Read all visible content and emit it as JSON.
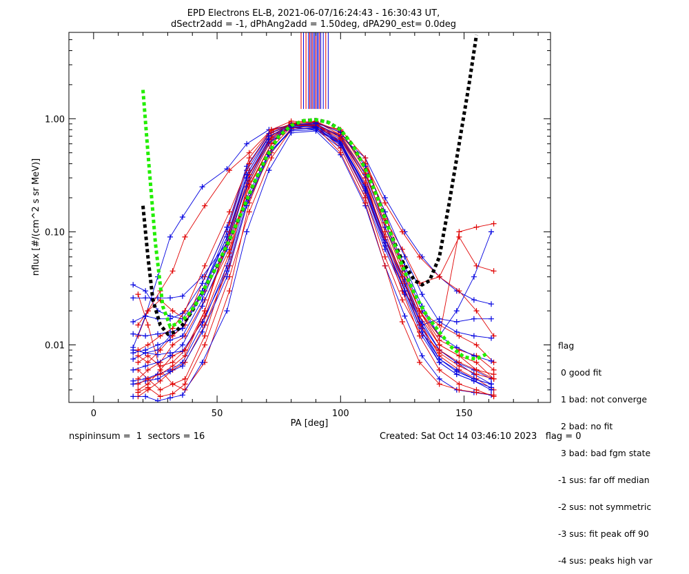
{
  "chart_data": {
    "type": "scatter",
    "title": "EPD Electrons EL-B, 2021-06-07/16:24:43 - 16:30:43 UT,",
    "subtitle": "dSectr2add = -1, dPhAng2add = 1.50deg, dPA290_est=   0.0deg",
    "xlabel": "PA [deg]",
    "ylabel": "nflux [#/(cm^2 s sr MeV)]",
    "xlim": [
      -10,
      185
    ],
    "ylim": [
      0.0031,
      5.8
    ],
    "yscale": "log",
    "x_ticks": [
      0,
      50,
      100,
      150
    ],
    "x_tick_labels": [
      "0",
      "50",
      "100",
      "150"
    ],
    "y_ticks": [
      0.01,
      0.1,
      1.0
    ],
    "y_tick_labels": [
      "0.01",
      "0.10",
      "1.00"
    ],
    "grid": false,
    "colors": {
      "red": "#e00000",
      "blue": "#0000e0",
      "green_fit": "#22ee00",
      "black_fit": "#000000"
    },
    "sweeps": {
      "x_red": [
        18,
        22,
        27,
        32,
        37,
        45,
        55,
        63,
        72,
        80,
        90,
        100,
        110,
        118,
        125,
        132,
        140,
        148,
        155,
        162
      ],
      "x_blue": [
        16,
        21,
        26,
        31,
        36,
        44,
        54,
        62,
        71,
        80,
        90,
        100,
        110,
        118,
        126,
        133,
        140,
        147,
        154,
        161
      ],
      "red_series": [
        [
          0.028,
          0.015,
          0.006,
          0.0045,
          0.004,
          0.007,
          0.03,
          0.18,
          0.55,
          0.85,
          0.9,
          0.7,
          0.3,
          0.08,
          0.03,
          0.02,
          0.01,
          0.008,
          0.007,
          0.005
        ],
        [
          0.012,
          0.02,
          0.025,
          0.02,
          0.017,
          0.03,
          0.08,
          0.25,
          0.6,
          0.9,
          0.95,
          0.75,
          0.4,
          0.15,
          0.05,
          0.02,
          0.015,
          0.012,
          0.01,
          0.007
        ],
        [
          0.006,
          0.005,
          0.004,
          0.0045,
          0.005,
          0.012,
          0.06,
          0.3,
          0.7,
          0.92,
          0.92,
          0.62,
          0.25,
          0.09,
          0.04,
          0.016,
          0.008,
          0.006,
          0.005,
          0.004
        ],
        [
          0.004,
          0.0045,
          0.006,
          0.008,
          0.009,
          0.02,
          0.1,
          0.35,
          0.75,
          0.88,
          0.9,
          0.8,
          0.45,
          0.13,
          0.07,
          0.035,
          0.04,
          0.09,
          0.05,
          0.045
        ],
        [
          0.0035,
          0.004,
          0.0048,
          0.006,
          0.007,
          0.015,
          0.05,
          0.2,
          0.5,
          0.82,
          0.88,
          0.55,
          0.2,
          0.06,
          0.025,
          0.013,
          0.009,
          0.007,
          0.006,
          0.005
        ],
        [
          0.008,
          0.007,
          0.009,
          0.012,
          0.015,
          0.04,
          0.12,
          0.45,
          0.8,
          0.95,
          0.93,
          0.78,
          0.35,
          0.11,
          0.045,
          0.02,
          0.011,
          0.009,
          0.008,
          0.006
        ],
        [
          0.005,
          0.006,
          0.007,
          0.01,
          0.012,
          0.025,
          0.07,
          0.28,
          0.65,
          0.9,
          0.9,
          0.6,
          0.22,
          0.08,
          0.03,
          0.012,
          0.006,
          0.0045,
          0.004,
          0.0035
        ],
        [
          0.015,
          0.02,
          0.03,
          0.045,
          0.09,
          0.17,
          0.35,
          0.5,
          0.8,
          0.87,
          0.87,
          0.72,
          0.4,
          0.18,
          0.1,
          0.06,
          0.04,
          0.03,
          0.02,
          0.012
        ],
        [
          0.0038,
          0.0042,
          0.0035,
          0.0037,
          0.0045,
          0.01,
          0.04,
          0.15,
          0.45,
          0.8,
          0.85,
          0.5,
          0.18,
          0.05,
          0.016,
          0.007,
          0.0045,
          0.004,
          0.0038,
          0.0036
        ],
        [
          0.009,
          0.01,
          0.012,
          0.014,
          0.02,
          0.05,
          0.15,
          0.4,
          0.78,
          0.9,
          0.9,
          0.68,
          0.3,
          0.1,
          0.04,
          0.018,
          0.01,
          0.008,
          0.006,
          0.0055
        ],
        [
          0.007,
          0.008,
          0.0065,
          0.007,
          0.009,
          0.018,
          0.065,
          0.26,
          0.6,
          0.88,
          0.88,
          0.66,
          0.27,
          0.09,
          0.035,
          0.015,
          0.0085,
          0.0065,
          0.0055,
          0.005
        ],
        [
          0.0045,
          0.005,
          0.0055,
          0.0065,
          0.008,
          0.02,
          0.09,
          0.32,
          0.68,
          0.91,
          0.94,
          0.72,
          0.33,
          0.12,
          0.05,
          0.02,
          0.012,
          0.1,
          0.11,
          0.118
        ]
      ],
      "blue_series": [
        [
          0.034,
          0.03,
          0.02,
          0.018,
          0.017,
          0.03,
          0.1,
          0.35,
          0.7,
          0.85,
          0.8,
          0.6,
          0.25,
          0.09,
          0.035,
          0.015,
          0.009,
          0.007,
          0.0055,
          0.0045
        ],
        [
          0.0095,
          0.018,
          0.04,
          0.09,
          0.135,
          0.25,
          0.36,
          0.6,
          0.8,
          0.88,
          0.85,
          0.7,
          0.45,
          0.2,
          0.1,
          0.06,
          0.04,
          0.03,
          0.025,
          0.023
        ],
        [
          0.0075,
          0.0085,
          0.009,
          0.012,
          0.014,
          0.03,
          0.09,
          0.3,
          0.65,
          0.83,
          0.82,
          0.62,
          0.26,
          0.09,
          0.038,
          0.016,
          0.009,
          0.007,
          0.006,
          0.005
        ],
        [
          0.0048,
          0.005,
          0.0055,
          0.006,
          0.007,
          0.015,
          0.05,
          0.2,
          0.5,
          0.78,
          0.8,
          0.55,
          0.2,
          0.07,
          0.028,
          0.012,
          0.007,
          0.0055,
          0.0048,
          0.0042
        ],
        [
          0.026,
          0.026,
          0.026,
          0.026,
          0.027,
          0.04,
          0.08,
          0.25,
          0.6,
          0.86,
          0.86,
          0.64,
          0.24,
          0.08,
          0.03,
          0.015,
          0.017,
          0.016,
          0.017,
          0.017
        ],
        [
          0.009,
          0.0085,
          0.0082,
          0.0085,
          0.0088,
          0.016,
          0.045,
          0.18,
          0.5,
          0.8,
          0.83,
          0.58,
          0.22,
          0.075,
          0.03,
          0.013,
          0.0075,
          0.006,
          0.005,
          0.0045
        ],
        [
          0.0035,
          0.0035,
          0.0032,
          0.0034,
          0.0036,
          0.007,
          0.02,
          0.1,
          0.35,
          0.75,
          0.78,
          0.48,
          0.17,
          0.05,
          0.018,
          0.008,
          0.005,
          0.004,
          0.0038,
          0.0036
        ],
        [
          0.016,
          0.018,
          0.017,
          0.017,
          0.019,
          0.035,
          0.11,
          0.38,
          0.74,
          0.9,
          0.88,
          0.66,
          0.3,
          0.11,
          0.045,
          0.02,
          0.012,
          0.0095,
          0.008,
          0.0072
        ],
        [
          0.006,
          0.0065,
          0.007,
          0.008,
          0.01,
          0.022,
          0.07,
          0.27,
          0.62,
          0.84,
          0.86,
          0.62,
          0.25,
          0.085,
          0.034,
          0.014,
          0.0075,
          0.0058,
          0.005,
          0.0045
        ],
        [
          0.0085,
          0.009,
          0.01,
          0.011,
          0.012,
          0.025,
          0.08,
          0.3,
          0.66,
          0.87,
          0.9,
          0.7,
          0.32,
          0.12,
          0.05,
          0.022,
          0.012,
          0.02,
          0.04,
          0.1
        ],
        [
          0.0045,
          0.0048,
          0.005,
          0.0058,
          0.0065,
          0.013,
          0.04,
          0.17,
          0.48,
          0.8,
          0.84,
          0.6,
          0.23,
          0.08,
          0.03,
          0.013,
          0.007,
          0.0055,
          0.0048,
          0.004
        ],
        [
          0.0125,
          0.012,
          0.0125,
          0.013,
          0.014,
          0.028,
          0.09,
          0.32,
          0.7,
          0.88,
          0.92,
          0.76,
          0.38,
          0.15,
          0.06,
          0.028,
          0.016,
          0.013,
          0.012,
          0.0115
        ]
      ]
    },
    "fits": {
      "green": {
        "x": [
          20,
          22,
          25,
          28,
          31,
          34,
          38,
          42,
          46,
          50,
          55,
          60,
          65,
          70,
          75,
          80,
          85,
          90,
          95,
          100,
          105,
          110,
          115,
          120,
          125,
          130,
          135,
          140,
          145,
          150,
          155,
          160
        ],
        "y": [
          1.8,
          0.5,
          0.08,
          0.022,
          0.0145,
          0.0155,
          0.018,
          0.024,
          0.035,
          0.05,
          0.085,
          0.15,
          0.27,
          0.46,
          0.7,
          0.87,
          0.96,
          0.98,
          0.93,
          0.8,
          0.58,
          0.36,
          0.2,
          0.1,
          0.05,
          0.028,
          0.018,
          0.013,
          0.0095,
          0.0078,
          0.0075,
          0.0085
        ]
      },
      "black": {
        "x": [
          20,
          22,
          24,
          27,
          30,
          33,
          36,
          40,
          45,
          50,
          55,
          60,
          65,
          70,
          75,
          80,
          85,
          90,
          95,
          100,
          105,
          110,
          115,
          120,
          125,
          130,
          133,
          136,
          140,
          144,
          148,
          152,
          155
        ],
        "y": [
          0.17,
          0.06,
          0.025,
          0.015,
          0.0125,
          0.013,
          0.015,
          0.02,
          0.032,
          0.05,
          0.085,
          0.15,
          0.27,
          0.46,
          0.7,
          0.87,
          0.96,
          0.98,
          0.93,
          0.8,
          0.58,
          0.36,
          0.2,
          0.1,
          0.055,
          0.037,
          0.034,
          0.037,
          0.06,
          0.18,
          0.6,
          2.0,
          5.5
        ]
      }
    },
    "marker_lines": {
      "x": [
        84,
        85,
        86,
        87,
        87.5,
        88,
        88.5,
        89,
        89.5,
        90,
        90.5,
        91,
        91.5,
        92,
        93,
        94,
        95
      ],
      "colors": [
        "red",
        "blue",
        "red",
        "blue",
        "red",
        "blue",
        "red",
        "blue",
        "blue",
        "red",
        "blue",
        "blue",
        "red",
        "blue",
        "blue",
        "red",
        "blue"
      ],
      "y_bottom": 1.22
    }
  },
  "legend": {
    "title": "flag",
    "items": [
      " 0 good fit",
      " 1 bad: not converge",
      " 2 bad: no fit",
      " 3 bad: bad fgm state",
      "-1 sus: far off median",
      "-2 sus: not symmetric",
      "-3 sus: fit peak off 90",
      "-4 sus: peaks high var"
    ]
  },
  "footer": {
    "left": "nspininsum =  1  sectors = 16",
    "right": "Created: Sat Oct 14 03:46:10 2023   flag = 0"
  }
}
